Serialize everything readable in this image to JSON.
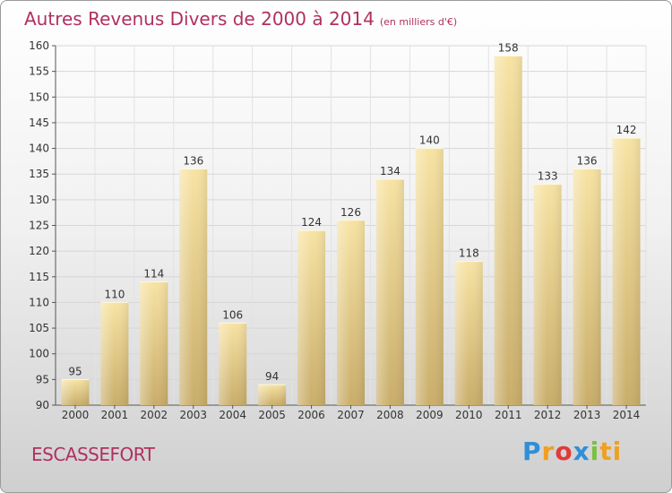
{
  "title": "Autres Revenus Divers de 2000 à 2014",
  "subtitle": "(en milliers d'€)",
  "town": "ESCASSEFORT",
  "logo": {
    "p1": "P",
    "p2": "r",
    "p3": "o",
    "p4": "x",
    "p5": "i",
    "p6": "ti"
  },
  "colors": {
    "title": "#b03060",
    "bar_light": "#f7e3a3",
    "bar_dark": "#c9ad6a"
  },
  "chart_data": {
    "type": "bar",
    "categories": [
      "2000",
      "2001",
      "2002",
      "2003",
      "2004",
      "2005",
      "2006",
      "2007",
      "2008",
      "2009",
      "2010",
      "2011",
      "2012",
      "2013",
      "2014"
    ],
    "values": [
      95,
      110,
      114,
      136,
      106,
      94,
      124,
      126,
      134,
      140,
      118,
      158,
      133,
      136,
      142
    ],
    "ylim": [
      90,
      160
    ],
    "yticks": [
      90,
      95,
      100,
      105,
      110,
      115,
      120,
      125,
      130,
      135,
      140,
      145,
      150,
      155,
      160
    ],
    "grid": true,
    "title": "Autres Revenus Divers de 2000 à 2014",
    "xlabel": "",
    "ylabel": ""
  }
}
